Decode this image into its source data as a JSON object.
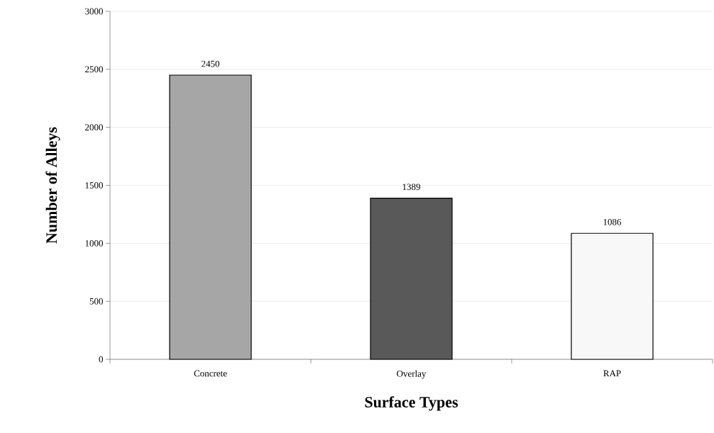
{
  "chart_data": {
    "type": "bar",
    "xlabel": "Surface Types",
    "ylabel": "Number of Alleys",
    "categories": [
      "Concrete",
      "Overlay",
      "RAP"
    ],
    "values": [
      2450,
      1389,
      1086
    ],
    "colors": [
      "#a6a6a6",
      "#595959",
      "#f8f8f8"
    ],
    "ylim": [
      0,
      3000
    ],
    "yticks": [
      0,
      500,
      1000,
      1500,
      2000,
      2500,
      3000
    ],
    "grid": "y",
    "data_labels": true
  }
}
